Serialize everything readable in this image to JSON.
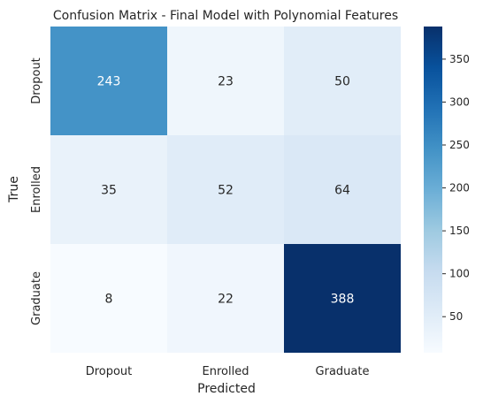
{
  "chart_data": {
    "type": "heatmap",
    "title": "Confusion Matrix - Final Model with Polynomial Features",
    "xlabel": "Predicted",
    "ylabel": "True",
    "x_categories": [
      "Dropout",
      "Enrolled",
      "Graduate"
    ],
    "y_categories": [
      "Dropout",
      "Enrolled",
      "Graduate"
    ],
    "values": [
      [
        243,
        23,
        50
      ],
      [
        35,
        52,
        64
      ],
      [
        8,
        22,
        388
      ]
    ],
    "colorbar": {
      "range": [
        8,
        388
      ],
      "ticks": [
        50,
        100,
        150,
        200,
        250,
        300,
        350
      ]
    },
    "colormap": "Blues",
    "grid": false
  }
}
